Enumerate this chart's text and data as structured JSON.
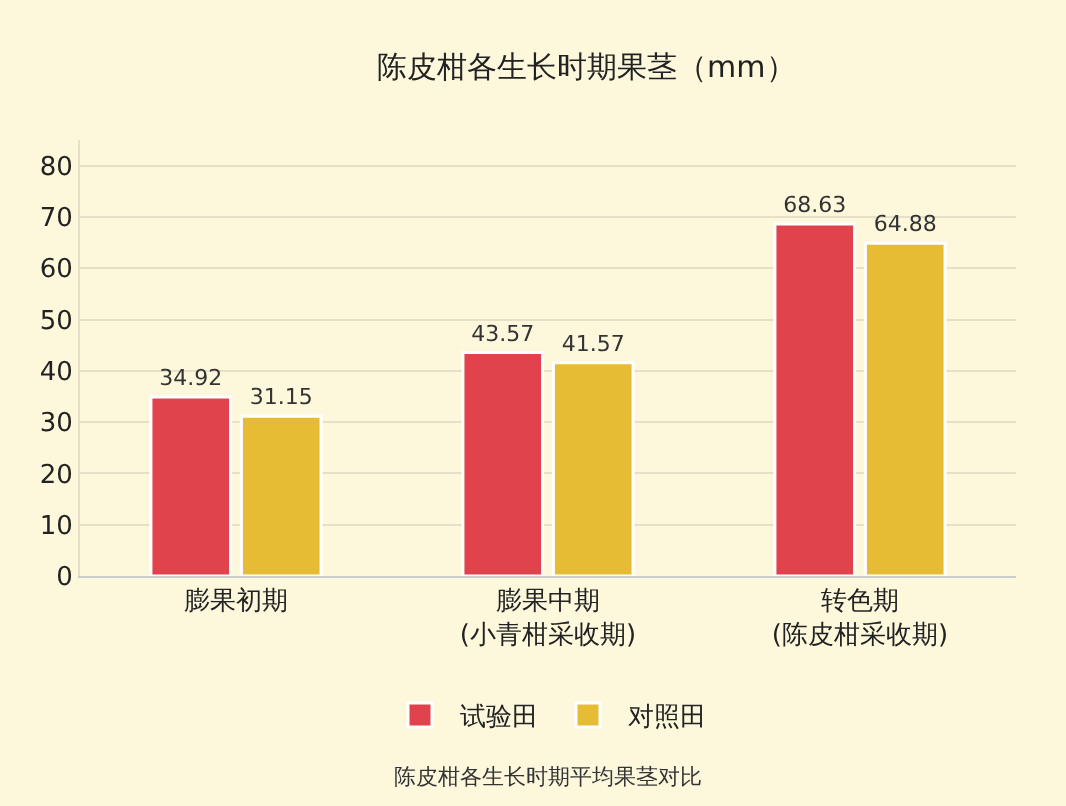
{
  "chart_data": {
    "type": "bar",
    "title": "陈皮柑各生长时期果茎（mm）",
    "categories": [
      "膨果初期",
      "膨果中期\n(小青柑采收期)",
      "转色期\n(陈皮柑采收期)"
    ],
    "series": [
      {
        "name": "试验田",
        "color": "#e0434b",
        "values": [
          34.92,
          43.57,
          68.63
        ]
      },
      {
        "name": "对照田",
        "color": "#e6bc35",
        "values": [
          31.15,
          41.57,
          64.88
        ]
      }
    ],
    "ylim": [
      0,
      85
    ],
    "yticks": [
      0,
      10,
      20,
      30,
      40,
      50,
      60,
      70,
      80
    ],
    "grid": "y",
    "legend": "bottom",
    "data_labels": true,
    "annotations": [
      "陈皮柑各生长时期平均果茎对比"
    ]
  }
}
